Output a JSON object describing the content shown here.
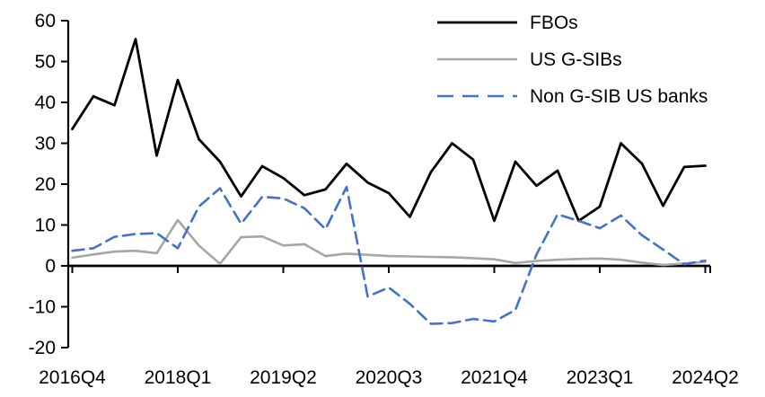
{
  "chart_data": {
    "type": "line",
    "title": "",
    "xlabel": "",
    "ylabel": "",
    "grid": false,
    "legend_position": "top-right",
    "ylim": [
      -20,
      60
    ],
    "yticks": [
      60,
      50,
      40,
      30,
      20,
      10,
      0,
      -10,
      -20
    ],
    "x_labels": [
      "2016Q4",
      "2017Q1",
      "2017Q2",
      "2017Q3",
      "2017Q4",
      "2018Q1",
      "2018Q2",
      "2018Q3",
      "2018Q4",
      "2019Q1",
      "2019Q2",
      "2019Q3",
      "2019Q4",
      "2020Q1",
      "2020Q2",
      "2020Q3",
      "2020Q4",
      "2021Q1",
      "2021Q2",
      "2021Q3",
      "2021Q4",
      "2022Q1",
      "2022Q2",
      "2022Q3",
      "2022Q4",
      "2023Q1",
      "2023Q2",
      "2023Q3",
      "2023Q4",
      "2024Q1",
      "2024Q2"
    ],
    "x_tick_labels": [
      "2016Q4",
      "2018Q1",
      "2019Q2",
      "2020Q3",
      "2021Q4",
      "2023Q1",
      "2024Q2"
    ],
    "x_tick_indices": [
      0,
      5,
      10,
      15,
      20,
      25,
      30
    ],
    "series": [
      {
        "name": "FBOs",
        "color": "#000000",
        "style": "solid",
        "values": [
          33.5,
          41.5,
          39.3,
          55.5,
          27,
          45.5,
          31,
          25.5,
          17,
          24.4,
          21.5,
          17.3,
          18.7,
          25,
          20.4,
          17.8,
          12,
          23,
          30,
          26,
          11,
          25.5,
          19.6,
          23.3,
          11,
          14.5,
          30,
          25,
          14.7,
          24.2,
          24.5
        ]
      },
      {
        "name": "US G-SIBs",
        "color": "#a6a6a6",
        "style": "solid",
        "values": [
          2,
          2.8,
          3.5,
          3.7,
          3.1,
          11.2,
          5,
          0.5,
          7,
          7.2,
          5,
          5.3,
          2.4,
          3,
          2.7,
          2.4,
          2.3,
          2.2,
          2.1,
          1.9,
          1.6,
          0.7,
          1.2,
          1.5,
          1.7,
          1.8,
          1.5,
          0.8,
          0.2,
          0.6,
          1
        ]
      },
      {
        "name": "Non G-SIB US banks",
        "color": "#4472c4",
        "style": "dashed",
        "values": [
          3.7,
          4.3,
          7.1,
          7.8,
          8,
          4.3,
          14.5,
          19,
          10.3,
          16.9,
          16.5,
          14.1,
          9,
          19.3,
          -7.5,
          -5.3,
          -9.3,
          -14.2,
          -14,
          -13,
          -13.6,
          -10.8,
          2.8,
          12.6,
          11,
          9.2,
          12.3,
          7.5,
          4,
          0.4,
          1.3
        ]
      }
    ]
  }
}
